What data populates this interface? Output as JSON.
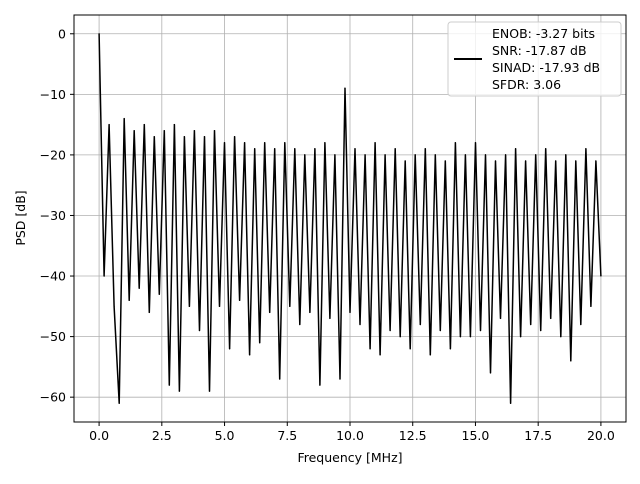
{
  "chart_data": {
    "type": "line",
    "title": "",
    "xlabel": "Frequency [MHz]",
    "ylabel": "PSD [dB]",
    "xlim": [
      -1.0,
      21.0
    ],
    "ylim": [
      -64.1,
      3.1
    ],
    "x_ticks": [
      "0.0",
      "2.5",
      "5.0",
      "7.5",
      "10.0",
      "12.5",
      "15.0",
      "17.5",
      "20.0"
    ],
    "y_ticks": [
      "0",
      "−10",
      "−20",
      "−30",
      "−40",
      "−50",
      "−60"
    ],
    "grid": true,
    "legend_placement": "upper-right",
    "line_color": "#000000",
    "legend": {
      "lines": [
        "ENOB: -3.27 bits",
        "SNR: -17.87 dB",
        "SINAD: -17.93 dB",
        "SFDR: 3.06"
      ]
    },
    "series": [
      {
        "x": [
          0,
          0.2,
          0.4,
          0.6,
          0.8,
          1.0,
          1.2,
          1.4,
          1.6,
          1.8,
          2.0,
          2.2,
          2.4,
          2.6,
          2.8,
          3.0,
          3.2,
          3.4,
          3.6,
          3.8,
          4.0,
          4.2,
          4.4,
          4.6,
          4.8,
          5.0,
          5.2,
          5.4,
          5.6,
          5.8,
          6.0,
          6.2,
          6.4,
          6.6,
          6.8,
          7.0,
          7.2,
          7.4,
          7.6,
          7.8,
          8.0,
          8.2,
          8.4,
          8.6,
          8.8,
          9.0,
          9.2,
          9.4,
          9.6,
          9.8,
          10.0,
          10.2,
          10.4,
          10.6,
          10.8,
          11.0,
          11.2,
          11.4,
          11.6,
          11.8,
          12.0,
          12.2,
          12.4,
          12.6,
          12.8,
          13.0,
          13.2,
          13.4,
          13.6,
          13.8,
          14.0,
          14.2,
          14.4,
          14.6,
          14.8,
          15.0,
          15.2,
          15.4,
          15.6,
          15.8,
          16.0,
          16.2,
          16.4,
          16.6,
          16.8,
          17.0,
          17.2,
          17.4,
          17.6,
          17.8,
          18.0,
          18.2,
          18.4,
          18.6,
          18.8,
          19.0,
          19.2,
          19.4,
          19.6,
          19.8,
          20.0
        ],
        "y": [
          0,
          -40,
          -15,
          -45,
          -61,
          -14,
          -44,
          -16,
          -42,
          -15,
          -46,
          -17,
          -43,
          -16,
          -58,
          -15,
          -59,
          -17,
          -45,
          -16,
          -49,
          -17,
          -59,
          -16,
          -45,
          -18,
          -52,
          -17,
          -44,
          -18,
          -53,
          -19,
          -51,
          -18,
          -46,
          -19,
          -57,
          -18,
          -45,
          -19,
          -48,
          -20,
          -46,
          -19,
          -58,
          -18,
          -47,
          -20,
          -57,
          -9,
          -46,
          -19,
          -48,
          -20,
          -52,
          -18,
          -53,
          -20,
          -49,
          -19,
          -50,
          -21,
          -52,
          -20,
          -48,
          -19,
          -53,
          -20,
          -49,
          -21,
          -52,
          -18,
          -50,
          -20,
          -50,
          -18,
          -49,
          -20,
          -56,
          -21,
          -47,
          -20,
          -61,
          -19,
          -50,
          -21,
          -48,
          -20,
          -49,
          -19,
          -47,
          -21,
          -50,
          -20,
          -54,
          -21,
          -48,
          -19,
          -45,
          -21,
          -40
        ]
      }
    ]
  }
}
